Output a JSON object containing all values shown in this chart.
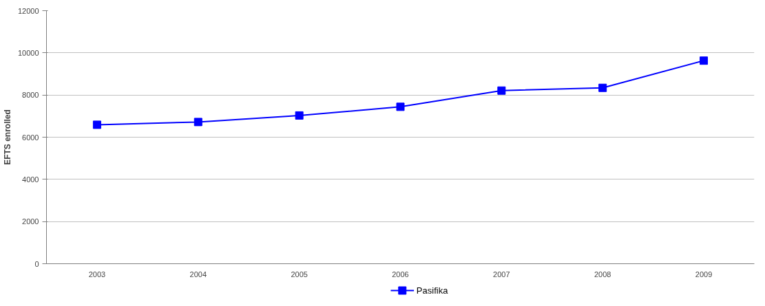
{
  "chart_data": {
    "type": "line",
    "ylabel": "EFTS enrolled",
    "categories": [
      "2003",
      "2004",
      "2005",
      "2006",
      "2007",
      "2008",
      "2009"
    ],
    "series": [
      {
        "name": "Pasifika",
        "color": "#0000ff",
        "values": [
          6590,
          6720,
          7030,
          7440,
          8210,
          8340,
          9630
        ]
      }
    ],
    "ylim": [
      0,
      12000
    ],
    "yticks": [
      0,
      2000,
      4000,
      6000,
      8000,
      10000,
      12000
    ],
    "grid": "y",
    "legend": "bottom",
    "marker": "square",
    "line_style": "solid"
  }
}
